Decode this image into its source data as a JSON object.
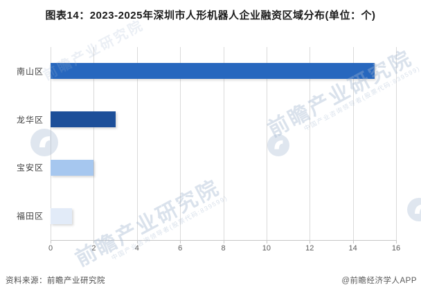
{
  "title": "图表14：2023-2025年深圳市人形机器人企业融资区域分布(单位：个)",
  "chart_data": {
    "type": "bar",
    "orientation": "horizontal",
    "title": "图表14：2023-2025年深圳市人形机器人企业融资区域分布(单位：个)",
    "unit": "个",
    "categories": [
      "南山区",
      "龙华区",
      "宝安区",
      "福田区"
    ],
    "values": [
      15,
      3,
      2,
      1
    ],
    "bar_colors": [
      "#2767BE",
      "#1D4F99",
      "#A6C7EF",
      "#E2EBF8"
    ],
    "xlim": [
      0,
      16
    ],
    "xticks": [
      0,
      2,
      4,
      6,
      8,
      10,
      12,
      14,
      16
    ],
    "grid": "vertical",
    "legend": "none"
  },
  "footer": {
    "source": "资料来源：前瞻产业研究院",
    "brand": "@前瞻经济学人APP"
  },
  "watermark": {
    "text": "前瞻产业研究院",
    "subtext": "中国产业咨询领导者(股票代码:839599)"
  },
  "colors": {
    "gridline": "#d9d9d9",
    "axis": "#c6c6c6",
    "title_text": "#1a1a1a",
    "tick_text": "#595959",
    "category_text": "#404040"
  }
}
